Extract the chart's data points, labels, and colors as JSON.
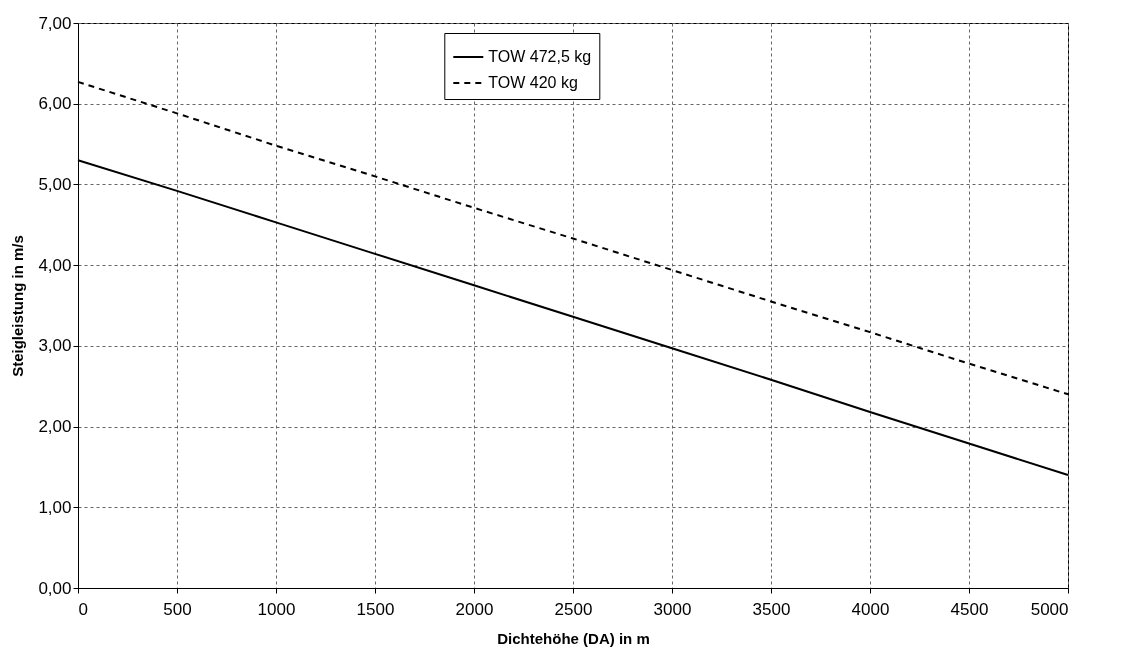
{
  "chart_data": {
    "type": "line",
    "xlabel": "Dichtehöhe (DA) in m",
    "ylabel": "Steigleistung in m/s",
    "x": [
      0,
      500,
      1000,
      1500,
      2000,
      2500,
      3000,
      3500,
      4000,
      4500,
      5000
    ],
    "series": [
      {
        "name": "TOW 472,5 kg",
        "color": "#000000",
        "line_style": "solid",
        "values": [
          5.3,
          4.92,
          4.53,
          4.14,
          3.75,
          3.36,
          2.97,
          2.58,
          2.18,
          1.79,
          1.4
        ]
      },
      {
        "name": "TOW 420 kg",
        "color": "#000000",
        "line_style": "dashed",
        "values": [
          6.27,
          5.88,
          5.48,
          5.1,
          4.71,
          4.33,
          3.94,
          3.55,
          3.17,
          2.78,
          2.4
        ]
      }
    ],
    "xlim": [
      0,
      5000
    ],
    "xticks": [
      0,
      500,
      1000,
      1500,
      2000,
      2500,
      3000,
      3500,
      4000,
      4500,
      5000
    ],
    "ylim": [
      0,
      7
    ],
    "yticks": [
      {
        "value": 0,
        "label": "0,00"
      },
      {
        "value": 1,
        "label": "1,00"
      },
      {
        "value": 2,
        "label": "2,00"
      },
      {
        "value": 3,
        "label": "3,00"
      },
      {
        "value": 4,
        "label": "4,00"
      },
      {
        "value": 5,
        "label": "5,00"
      },
      {
        "value": 6,
        "label": "6,00"
      },
      {
        "value": 7,
        "label": "7,00"
      }
    ],
    "grid": true,
    "legend": "top",
    "marker": "none"
  }
}
